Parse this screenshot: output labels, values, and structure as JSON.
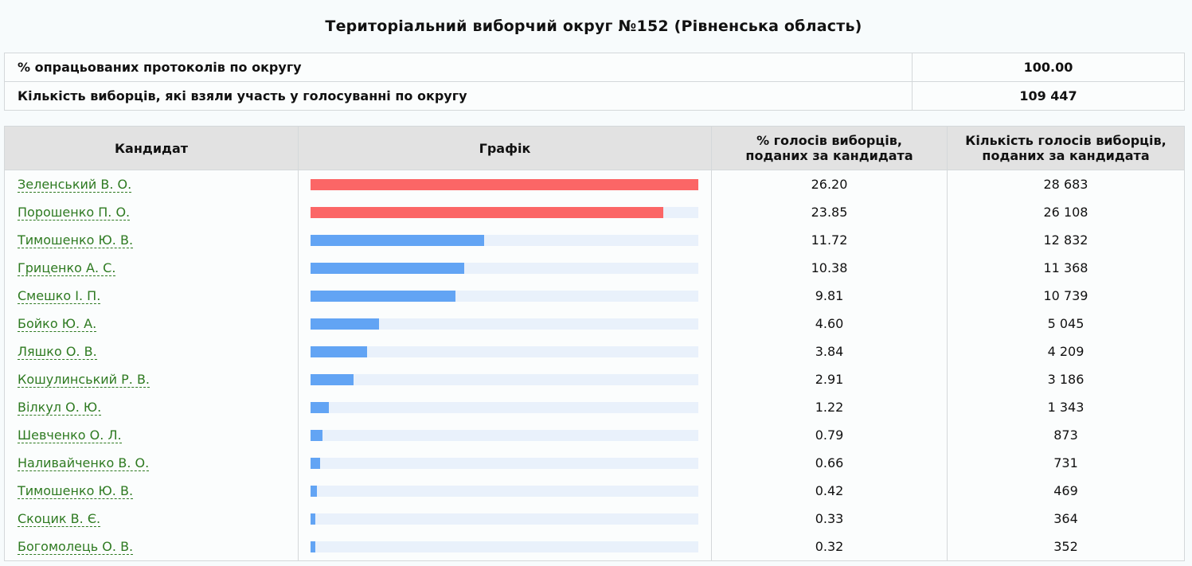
{
  "title": "Територіальний виборчий округ №152 (Рівненська область)",
  "summary": [
    {
      "label": "% опрацьованих протоколів по округу",
      "value": "100.00"
    },
    {
      "label": "Кількість виборців, які взяли участь у голосуванні по округу",
      "value": "109 447"
    }
  ],
  "headers": {
    "candidate": "Кандидат",
    "chart": "Графік",
    "percent": "% голосів виборців, поданих за кандидата",
    "count": "Кількість голосів виборців, поданих за кандидата"
  },
  "colors": {
    "lead": "#fb6666",
    "other": "#62a4f4",
    "track": "#e9f1fb",
    "link": "#2e7a21"
  },
  "rows": [
    {
      "name": "Зеленський В. О.",
      "percent": "26.20",
      "count": "28 683",
      "lead": true
    },
    {
      "name": "Порошенко П. О.",
      "percent": "23.85",
      "count": "26 108",
      "lead": true
    },
    {
      "name": "Тимошенко Ю. В.",
      "percent": "11.72",
      "count": "12 832",
      "lead": false
    },
    {
      "name": "Гриценко А. С.",
      "percent": "10.38",
      "count": "11 368",
      "lead": false
    },
    {
      "name": "Смешко І. П.",
      "percent": "9.81",
      "count": "10 739",
      "lead": false
    },
    {
      "name": "Бойко Ю. А.",
      "percent": "4.60",
      "count": "5 045",
      "lead": false
    },
    {
      "name": "Ляшко О. В.",
      "percent": "3.84",
      "count": "4 209",
      "lead": false
    },
    {
      "name": "Кошулинський Р. В.",
      "percent": "2.91",
      "count": "3 186",
      "lead": false
    },
    {
      "name": "Вілкул О. Ю.",
      "percent": "1.22",
      "count": "1 343",
      "lead": false
    },
    {
      "name": "Шевченко О. Л.",
      "percent": "0.79",
      "count": "873",
      "lead": false
    },
    {
      "name": "Наливайченко В. О.",
      "percent": "0.66",
      "count": "731",
      "lead": false
    },
    {
      "name": "Тимошенко Ю. В.",
      "percent": "0.42",
      "count": "469",
      "lead": false
    },
    {
      "name": "Скоцик В. Є.",
      "percent": "0.33",
      "count": "364",
      "lead": false
    },
    {
      "name": "Богомолець О. В.",
      "percent": "0.32",
      "count": "352",
      "lead": false
    }
  ]
}
